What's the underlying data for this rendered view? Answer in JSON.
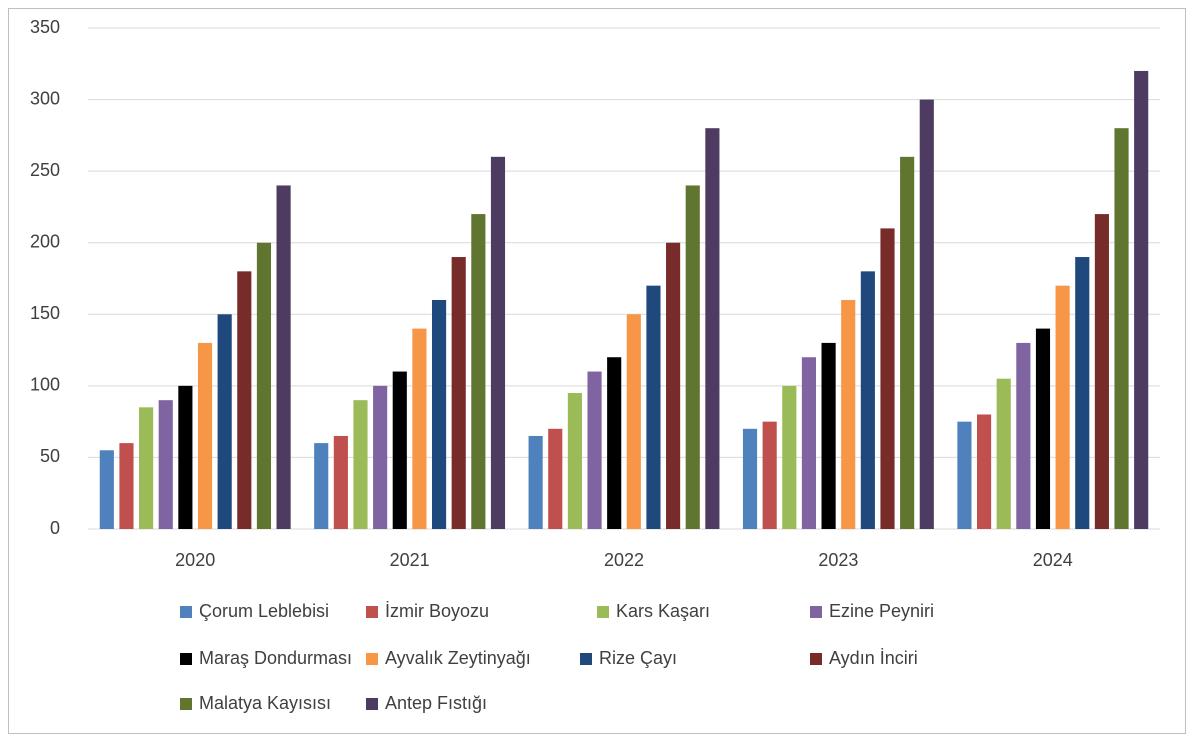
{
  "chart_data": {
    "type": "bar",
    "categories": [
      "2020",
      "2021",
      "2022",
      "2023",
      "2024"
    ],
    "series": [
      {
        "name": "Çorum Leblebisi",
        "color": "#4f81bd",
        "values": [
          55,
          60,
          65,
          70,
          75
        ]
      },
      {
        "name": "İzmir Boyozu",
        "color": "#c0504d",
        "values": [
          60,
          65,
          70,
          75,
          80
        ]
      },
      {
        "name": "Kars Kaşarı",
        "color": "#9bbb59",
        "values": [
          85,
          90,
          95,
          100,
          105
        ]
      },
      {
        "name": "Ezine Peyniri",
        "color": "#8064a2",
        "values": [
          90,
          100,
          110,
          120,
          130
        ]
      },
      {
        "name": "Maraş Dondurması",
        "color": "#000000",
        "values": [
          100,
          110,
          120,
          130,
          140
        ]
      },
      {
        "name": "Ayvalık Zeytinyağı",
        "color": "#f79646",
        "values": [
          130,
          140,
          150,
          160,
          170
        ]
      },
      {
        "name": "Rize Çayı",
        "color": "#1f497d",
        "values": [
          150,
          160,
          170,
          180,
          190
        ]
      },
      {
        "name": "Aydın İnciri",
        "color": "#772c2a",
        "values": [
          180,
          190,
          200,
          210,
          220
        ]
      },
      {
        "name": "Malatya Kayısısı",
        "color": "#5f7530",
        "values": [
          200,
          220,
          240,
          260,
          280
        ]
      },
      {
        "name": "Antep Fıstığı",
        "color": "#4d3b62",
        "values": [
          240,
          260,
          280,
          300,
          320
        ]
      }
    ],
    "ylim": [
      0,
      350
    ],
    "yticks": [
      0,
      50,
      100,
      150,
      200,
      250,
      300,
      350
    ],
    "grid": true,
    "legend": "bottom"
  }
}
